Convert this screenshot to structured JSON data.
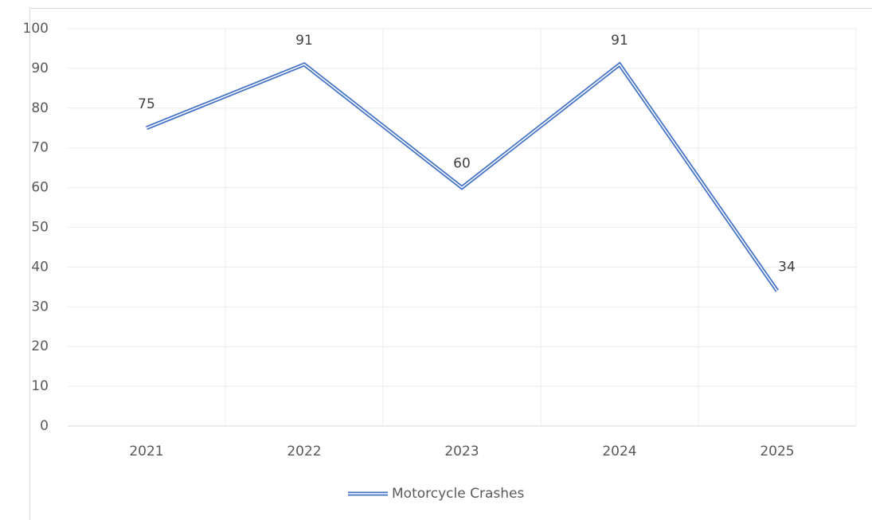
{
  "chart_data": {
    "type": "line",
    "categories": [
      "2021",
      "2022",
      "2023",
      "2024",
      "2025"
    ],
    "series": [
      {
        "name": "Motorcycle Crashes",
        "color": "#4472c4",
        "values": [
          75,
          91,
          60,
          91,
          34
        ]
      }
    ],
    "ylim": [
      0,
      100
    ],
    "yticks": [
      0,
      10,
      20,
      30,
      40,
      50,
      60,
      70,
      80,
      90,
      100
    ],
    "grid": true,
    "data_labels": true,
    "legend": "bottom"
  }
}
